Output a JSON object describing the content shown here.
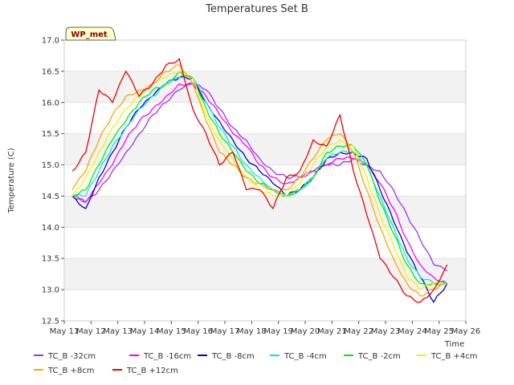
{
  "chart_data": {
    "type": "line",
    "title": "Temperatures Set B",
    "xlabel": "Time",
    "ylabel": "Temperature (C)",
    "badge": "WP_met",
    "xlim": [
      11,
      26
    ],
    "ylim": [
      12.5,
      17.0
    ],
    "x_ticks": [
      11,
      12,
      13,
      14,
      15,
      16,
      17,
      18,
      19,
      20,
      21,
      22,
      23,
      24,
      25,
      26
    ],
    "x_tick_labels": [
      "May 11",
      "May 12",
      "May 13",
      "May 14",
      "May 15",
      "May 16",
      "May 17",
      "May 18",
      "May 19",
      "May 20",
      "May 21",
      "May 22",
      "May 23",
      "May 24",
      "May 25",
      "May 26"
    ],
    "y_ticks": [
      12.5,
      13.0,
      13.5,
      14.0,
      14.5,
      15.0,
      15.5,
      16.0,
      16.5,
      17.0
    ],
    "y_tick_labels": [
      "12.5",
      "13.0",
      "13.5",
      "14.0",
      "14.5",
      "15.0",
      "15.5",
      "16.0",
      "16.5",
      "17.0"
    ],
    "x": [
      11.3,
      11.8,
      12.3,
      12.8,
      13.3,
      13.8,
      14.3,
      14.8,
      15.3,
      15.8,
      16.3,
      16.8,
      17.3,
      17.8,
      18.3,
      18.8,
      19.3,
      19.8,
      20.3,
      20.8,
      21.3,
      21.8,
      22.3,
      22.8,
      23.3,
      23.8,
      24.3,
      24.8,
      25.3
    ],
    "series": [
      {
        "name": "TC_B -32cm",
        "color": "#9b30ff",
        "values": [
          14.5,
          14.4,
          14.6,
          14.9,
          15.2,
          15.5,
          15.8,
          16.0,
          16.2,
          16.3,
          16.2,
          15.9,
          15.6,
          15.4,
          15.1,
          14.9,
          14.8,
          14.8,
          14.9,
          15.0,
          15.0,
          15.1,
          15.0,
          14.9,
          14.6,
          14.2,
          13.8,
          13.4,
          13.3
        ]
      },
      {
        "name": "TC_B -16cm",
        "color": "#ff00ff",
        "values": [
          14.5,
          14.4,
          14.7,
          15.0,
          15.4,
          15.7,
          15.9,
          16.1,
          16.3,
          16.3,
          16.1,
          15.8,
          15.5,
          15.3,
          15.0,
          14.8,
          14.7,
          14.8,
          14.9,
          15.0,
          15.1,
          15.1,
          15.0,
          14.7,
          14.3,
          13.8,
          13.4,
          13.2,
          13.1
        ]
      },
      {
        "name": "TC_B -8cm",
        "color": "#0000cd",
        "values": [
          14.5,
          14.3,
          14.8,
          15.2,
          15.6,
          15.9,
          16.1,
          16.3,
          16.4,
          16.4,
          16.0,
          15.7,
          15.4,
          15.1,
          14.9,
          14.7,
          14.5,
          14.6,
          14.8,
          15.1,
          15.2,
          15.2,
          15.1,
          14.6,
          14.1,
          13.6,
          13.2,
          12.8,
          13.1
        ]
      },
      {
        "name": "TC_B -4cm",
        "color": "#00e5ee",
        "values": [
          14.5,
          14.5,
          14.9,
          15.3,
          15.6,
          15.9,
          16.1,
          16.3,
          16.4,
          16.4,
          16.0,
          15.6,
          15.3,
          15.0,
          14.8,
          14.6,
          14.5,
          14.6,
          14.8,
          15.1,
          15.2,
          15.2,
          15.0,
          14.5,
          14.0,
          13.5,
          13.2,
          13.1,
          13.1
        ]
      },
      {
        "name": "TC_B -2cm",
        "color": "#00ee00",
        "values": [
          14.5,
          14.6,
          15.0,
          15.4,
          15.7,
          16.0,
          16.2,
          16.3,
          16.5,
          16.4,
          15.9,
          15.5,
          15.2,
          14.9,
          14.7,
          14.6,
          14.5,
          14.6,
          14.8,
          15.2,
          15.3,
          15.3,
          15.0,
          14.4,
          13.9,
          13.4,
          13.1,
          13.1,
          13.1
        ]
      },
      {
        "name": "TC_B +4cm",
        "color": "#ffee00",
        "values": [
          14.5,
          14.8,
          15.2,
          15.6,
          15.9,
          16.1,
          16.3,
          16.4,
          16.5,
          16.4,
          15.8,
          15.4,
          15.1,
          14.8,
          14.6,
          14.5,
          14.5,
          14.7,
          15.0,
          15.3,
          15.4,
          15.3,
          14.8,
          14.2,
          13.7,
          13.2,
          13.0,
          13.1,
          13.1
        ]
      },
      {
        "name": "TC_B +8cm",
        "color": "#ffa500",
        "values": [
          14.6,
          14.9,
          15.4,
          15.8,
          16.1,
          16.2,
          16.3,
          16.5,
          16.6,
          16.3,
          15.7,
          15.2,
          15.0,
          14.8,
          14.7,
          14.6,
          14.6,
          14.8,
          15.1,
          15.4,
          15.5,
          15.2,
          14.6,
          14.0,
          13.5,
          13.1,
          12.9,
          13.0,
          13.1
        ]
      },
      {
        "name": "TC_B +12cm",
        "color": "#ee0000",
        "values": [
          14.9,
          15.2,
          16.2,
          16.0,
          16.5,
          16.1,
          16.3,
          16.6,
          16.7,
          15.9,
          15.5,
          15.0,
          15.2,
          14.6,
          14.6,
          14.3,
          14.8,
          14.9,
          15.4,
          15.3,
          15.8,
          14.9,
          14.2,
          13.5,
          13.2,
          12.9,
          12.8,
          13.0,
          13.4
        ]
      }
    ],
    "legend_position": "bottom",
    "grid": "horizontal bands"
  }
}
